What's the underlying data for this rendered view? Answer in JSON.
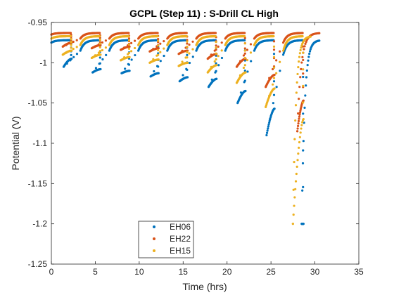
{
  "chart_data": {
    "type": "scatter",
    "title": "GCPL (Step 11) : S-Drill CL High",
    "xlabel": "Time (hrs)",
    "ylabel": "Potential (V)",
    "xlim": [
      0,
      35
    ],
    "ylim": [
      -1.25,
      -0.95
    ],
    "xticks": [
      0,
      5,
      10,
      15,
      20,
      25,
      30,
      35
    ],
    "xtick_labels": [
      "0",
      "5",
      "10",
      "15",
      "20",
      "25",
      "30",
      "35"
    ],
    "yticks": [
      -0.95,
      -1,
      -1.05,
      -1.1,
      -1.15,
      -1.2,
      -1.25
    ],
    "ytick_labels": [
      "-0.95",
      "-1",
      "-1.05",
      "-1.1",
      "-1.15",
      "-1.2",
      "-1.25"
    ],
    "grid": false,
    "legend_position": "bottom-center",
    "series": [
      {
        "name": "EH06",
        "color": "#0072BD",
        "cycle_starts": [
          0.0,
          3.3,
          6.6,
          9.9,
          13.2,
          16.5,
          19.8,
          23.1,
          26.4
        ],
        "cycles": [
          {
            "rest_start": -0.975,
            "rest_end": -0.972,
            "disc_start": -0.995,
            "disc_end": -1.005,
            "disc_end_time": 1.4
          },
          {
            "rest_start": -0.985,
            "rest_end": -0.972,
            "disc_start": -1.008,
            "disc_end": -1.012,
            "disc_end_time": 4.7
          },
          {
            "rest_start": -0.985,
            "rest_end": -0.972,
            "disc_start": -1.01,
            "disc_end": -1.013,
            "disc_end_time": 8.0
          },
          {
            "rest_start": -0.985,
            "rest_end": -0.972,
            "disc_start": -1.013,
            "disc_end": -1.017,
            "disc_end_time": 11.3
          },
          {
            "rest_start": -0.985,
            "rest_end": -0.972,
            "disc_start": -1.018,
            "disc_end": -1.023,
            "disc_end_time": 14.6
          },
          {
            "rest_start": -0.985,
            "rest_end": -0.972,
            "disc_start": -1.02,
            "disc_end": -1.03,
            "disc_end_time": 17.9
          },
          {
            "rest_start": -0.985,
            "rest_end": -0.972,
            "disc_start": -1.035,
            "disc_end": -1.05,
            "disc_end_time": 21.2
          },
          {
            "rest_start": -0.985,
            "rest_end": -0.972,
            "disc_start": -1.057,
            "disc_end": -1.09,
            "disc_end_time": 24.5
          },
          {
            "rest_start": -0.99,
            "rest_end": -0.972,
            "disc_start": -1.2,
            "disc_end": -1.2,
            "disc_end_time": 28.5
          }
        ],
        "final_rest": {
          "start_time": 28.5,
          "end_time": 30.5,
          "rest_start": -1.2,
          "rest_end": -0.972
        }
      },
      {
        "name": "EH22",
        "color": "#D95319",
        "cycle_starts": [
          0.0,
          3.3,
          6.6,
          9.9,
          13.2,
          16.5,
          19.8,
          23.1,
          26.4
        ],
        "cycles": [
          {
            "rest_start": -0.965,
            "rest_end": -0.963,
            "disc_start": -0.975,
            "disc_end": -0.98,
            "disc_end_time": 1.3
          },
          {
            "rest_start": -0.97,
            "rest_end": -0.963,
            "disc_start": -0.978,
            "disc_end": -0.982,
            "disc_end_time": 4.6
          },
          {
            "rest_start": -0.97,
            "rest_end": -0.963,
            "disc_start": -0.98,
            "disc_end": -0.984,
            "disc_end_time": 7.9
          },
          {
            "rest_start": -0.97,
            "rest_end": -0.963,
            "disc_start": -0.982,
            "disc_end": -0.986,
            "disc_end_time": 11.2
          },
          {
            "rest_start": -0.97,
            "rest_end": -0.963,
            "disc_start": -0.985,
            "disc_end": -0.989,
            "disc_end_time": 14.5
          },
          {
            "rest_start": -0.97,
            "rest_end": -0.963,
            "disc_start": -0.989,
            "disc_end": -0.995,
            "disc_end_time": 17.8
          },
          {
            "rest_start": -0.97,
            "rest_end": -0.963,
            "disc_start": -0.995,
            "disc_end": -1.005,
            "disc_end_time": 21.1
          },
          {
            "rest_start": -0.97,
            "rest_end": -0.963,
            "disc_start": -1.015,
            "disc_end": -1.03,
            "disc_end_time": 24.4
          },
          {
            "rest_start": -0.975,
            "rest_end": -0.963,
            "disc_start": -1.047,
            "disc_end": -1.085,
            "disc_end_time": 28.0
          }
        ],
        "final_rest": {
          "start_time": 28.0,
          "end_time": 30.5,
          "rest_start": -1.085,
          "rest_end": -0.963
        }
      },
      {
        "name": "EH15",
        "color": "#EDB120",
        "cycle_starts": [
          0.0,
          3.3,
          6.6,
          9.9,
          13.2,
          16.5,
          19.8,
          23.1,
          26.4
        ],
        "cycles": [
          {
            "rest_start": -0.97,
            "rest_end": -0.967,
            "disc_start": -0.985,
            "disc_end": -0.99,
            "disc_end_time": 1.3
          },
          {
            "rest_start": -0.978,
            "rest_end": -0.967,
            "disc_start": -0.99,
            "disc_end": -0.994,
            "disc_end_time": 4.6
          },
          {
            "rest_start": -0.978,
            "rest_end": -0.967,
            "disc_start": -0.993,
            "disc_end": -0.997,
            "disc_end_time": 7.9
          },
          {
            "rest_start": -0.978,
            "rest_end": -0.967,
            "disc_start": -0.996,
            "disc_end": -1.0,
            "disc_end_time": 11.2
          },
          {
            "rest_start": -0.978,
            "rest_end": -0.967,
            "disc_start": -1.0,
            "disc_end": -1.004,
            "disc_end_time": 14.5
          },
          {
            "rest_start": -0.978,
            "rest_end": -0.967,
            "disc_start": -1.003,
            "disc_end": -1.012,
            "disc_end_time": 17.8
          },
          {
            "rest_start": -0.978,
            "rest_end": -0.967,
            "disc_start": -1.012,
            "disc_end": -1.025,
            "disc_end_time": 21.1
          },
          {
            "rest_start": -0.978,
            "rest_end": -0.967,
            "disc_start": -1.032,
            "disc_end": -1.055,
            "disc_end_time": 24.4
          },
          {
            "rest_start": -0.985,
            "rest_end": -0.967,
            "disc_start": -1.07,
            "disc_end": -1.2,
            "disc_end_time": 27.5
          }
        ],
        "final_rest": {
          "start_time": 27.5,
          "end_time": 29.5,
          "rest_start": -1.2,
          "rest_end": -0.967
        }
      }
    ]
  }
}
